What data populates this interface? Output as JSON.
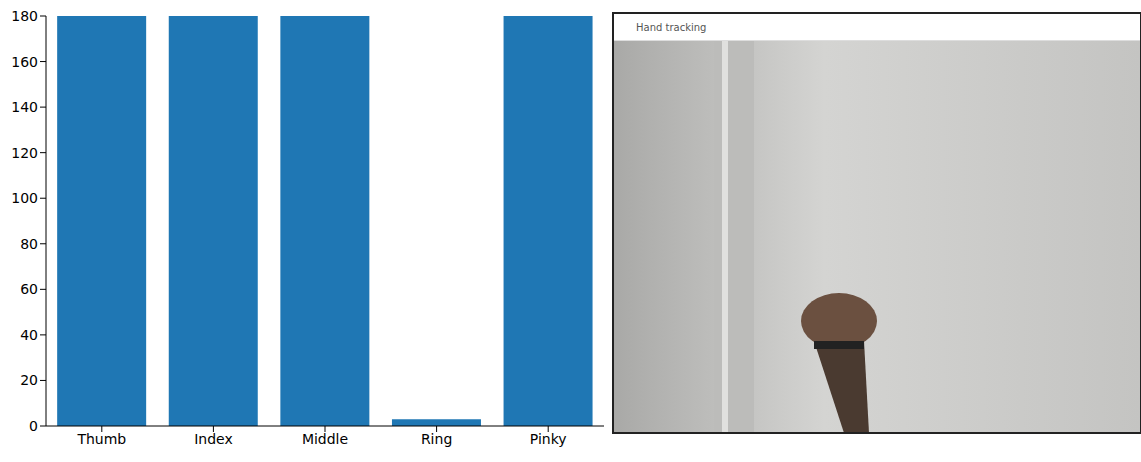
{
  "chart_data": {
    "type": "bar",
    "categories": [
      "Thumb",
      "Index",
      "Middle",
      "Ring",
      "Pinky"
    ],
    "values": [
      180,
      180,
      180,
      3,
      180
    ],
    "color": "#1f77b4",
    "ylim": [
      0,
      180
    ],
    "yticks": [
      0,
      20,
      40,
      60,
      80,
      100,
      120,
      140,
      160,
      180
    ],
    "grid": false
  },
  "screenshot": {
    "title": "Hand tracking"
  }
}
